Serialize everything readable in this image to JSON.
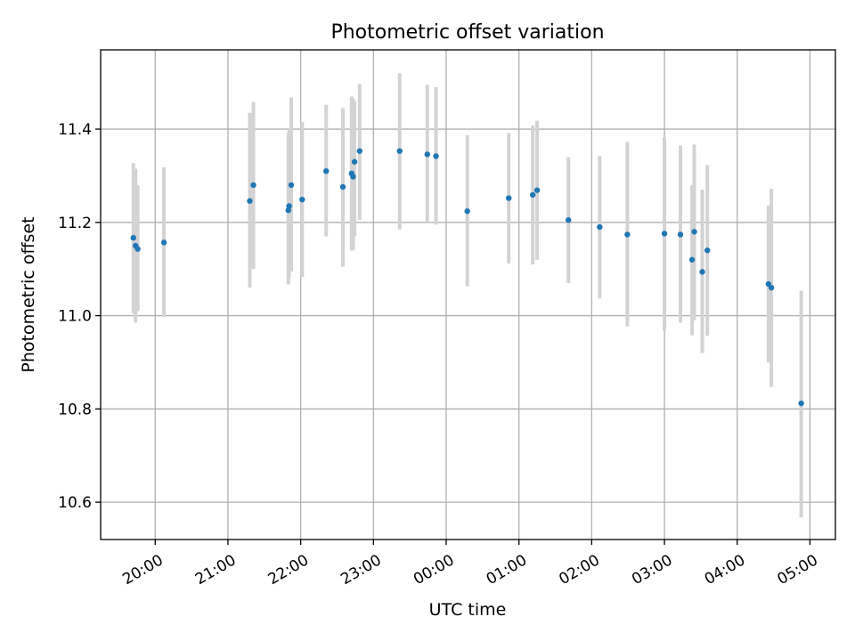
{
  "chart_data": {
    "type": "scatter",
    "title": "Photometric offset variation",
    "xlabel": "UTC time",
    "ylabel": "Photometric offset",
    "x_unit": "hours since 00:00 UTC",
    "xlim": [
      -4.75,
      5.35
    ],
    "ylim": [
      10.52,
      11.57
    ],
    "x_ticks": [
      {
        "value": -4,
        "label": "20:00"
      },
      {
        "value": -3,
        "label": "21:00"
      },
      {
        "value": -2,
        "label": "22:00"
      },
      {
        "value": -1,
        "label": "23:00"
      },
      {
        "value": 0,
        "label": "00:00"
      },
      {
        "value": 1,
        "label": "01:00"
      },
      {
        "value": 2,
        "label": "02:00"
      },
      {
        "value": 3,
        "label": "03:00"
      },
      {
        "value": 4,
        "label": "04:00"
      },
      {
        "value": 5,
        "label": "05:00"
      }
    ],
    "y_ticks": [
      {
        "value": 10.6,
        "label": "10.6"
      },
      {
        "value": 10.8,
        "label": "10.8"
      },
      {
        "value": 11.0,
        "label": "11.0"
      },
      {
        "value": 11.2,
        "label": "11.2"
      },
      {
        "value": 11.4,
        "label": "11.4"
      }
    ],
    "grid": true,
    "point_color": "#1f77b4",
    "errorbar_color": "#d3d3d3",
    "points": [
      {
        "x": -4.3,
        "y": 11.167,
        "lo": 11.005,
        "hi": 11.327
      },
      {
        "x": -4.27,
        "y": 11.15,
        "lo": 10.985,
        "hi": 11.315
      },
      {
        "x": -4.24,
        "y": 11.143,
        "lo": 11.01,
        "hi": 11.28
      },
      {
        "x": -3.88,
        "y": 11.157,
        "lo": 10.997,
        "hi": 11.318
      },
      {
        "x": -2.7,
        "y": 11.246,
        "lo": 11.06,
        "hi": 11.435
      },
      {
        "x": -2.65,
        "y": 11.28,
        "lo": 11.1,
        "hi": 11.458
      },
      {
        "x": -2.17,
        "y": 11.226,
        "lo": 11.067,
        "hi": 11.39
      },
      {
        "x": -2.16,
        "y": 11.235,
        "lo": 11.08,
        "hi": 11.4
      },
      {
        "x": -2.13,
        "y": 11.28,
        "lo": 11.095,
        "hi": 11.468
      },
      {
        "x": -1.98,
        "y": 11.249,
        "lo": 11.083,
        "hi": 11.415
      },
      {
        "x": -1.65,
        "y": 11.31,
        "lo": 11.17,
        "hi": 11.452
      },
      {
        "x": -1.42,
        "y": 11.276,
        "lo": 11.105,
        "hi": 11.445
      },
      {
        "x": -1.3,
        "y": 11.305,
        "lo": 11.14,
        "hi": 11.47
      },
      {
        "x": -1.28,
        "y": 11.298,
        "lo": 11.14,
        "hi": 11.466
      },
      {
        "x": -1.26,
        "y": 11.33,
        "lo": 11.17,
        "hi": 11.46
      },
      {
        "x": -1.19,
        "y": 11.353,
        "lo": 11.205,
        "hi": 11.497
      },
      {
        "x": -0.64,
        "y": 11.353,
        "lo": 11.185,
        "hi": 11.52
      },
      {
        "x": -0.26,
        "y": 11.346,
        "lo": 11.2,
        "hi": 11.495
      },
      {
        "x": -0.14,
        "y": 11.342,
        "lo": 11.195,
        "hi": 11.49
      },
      {
        "x": 0.29,
        "y": 11.224,
        "lo": 11.063,
        "hi": 11.387
      },
      {
        "x": 0.86,
        "y": 11.252,
        "lo": 11.112,
        "hi": 11.392
      },
      {
        "x": 1.19,
        "y": 11.259,
        "lo": 11.11,
        "hi": 11.408
      },
      {
        "x": 1.25,
        "y": 11.269,
        "lo": 11.12,
        "hi": 11.418
      },
      {
        "x": 1.68,
        "y": 11.205,
        "lo": 11.07,
        "hi": 11.34
      },
      {
        "x": 2.11,
        "y": 11.19,
        "lo": 11.037,
        "hi": 11.342
      },
      {
        "x": 2.49,
        "y": 11.174,
        "lo": 10.977,
        "hi": 11.373
      },
      {
        "x": 3.0,
        "y": 11.176,
        "lo": 10.968,
        "hi": 11.383
      },
      {
        "x": 3.22,
        "y": 11.174,
        "lo": 10.985,
        "hi": 11.365
      },
      {
        "x": 3.38,
        "y": 11.12,
        "lo": 10.958,
        "hi": 11.28
      },
      {
        "x": 3.41,
        "y": 11.18,
        "lo": 10.99,
        "hi": 11.367
      },
      {
        "x": 3.52,
        "y": 11.094,
        "lo": 10.92,
        "hi": 11.27
      },
      {
        "x": 3.59,
        "y": 11.14,
        "lo": 10.957,
        "hi": 11.323
      },
      {
        "x": 4.43,
        "y": 11.068,
        "lo": 10.9,
        "hi": 11.236
      },
      {
        "x": 4.47,
        "y": 11.06,
        "lo": 10.847,
        "hi": 11.272
      },
      {
        "x": 4.88,
        "y": 10.812,
        "lo": 10.567,
        "hi": 11.053
      }
    ]
  }
}
